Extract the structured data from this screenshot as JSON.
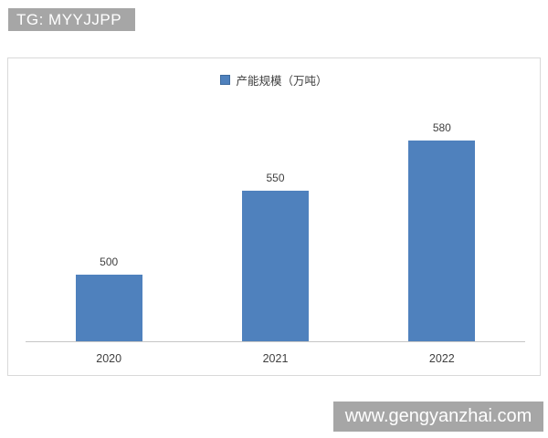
{
  "watermarks": {
    "top": "TG: MYYJJPP",
    "bottom": "www.gengyanzhai.com"
  },
  "chart_data": {
    "type": "bar",
    "title": "",
    "xlabel": "",
    "ylabel": "",
    "categories": [
      "2020",
      "2021",
      "2022"
    ],
    "series": [
      {
        "name": "产能规模（万吨）",
        "values": [
          500,
          550,
          580
        ]
      }
    ],
    "data_labels": [
      "500",
      "550",
      "580"
    ],
    "ylim": [
      460,
      629
    ],
    "grid": false,
    "legend_position": "top-center",
    "bar_color": "#4f81bd"
  },
  "colors": {
    "bar": "#4f81bd",
    "legend_swatch_border": "#3c6a9e",
    "chart_border": "#d9d9d9",
    "axis_line": "#c6c6c6",
    "label_text": "#404040",
    "watermark_bg": "#a6a6a6",
    "watermark_text": "#ffffff"
  }
}
